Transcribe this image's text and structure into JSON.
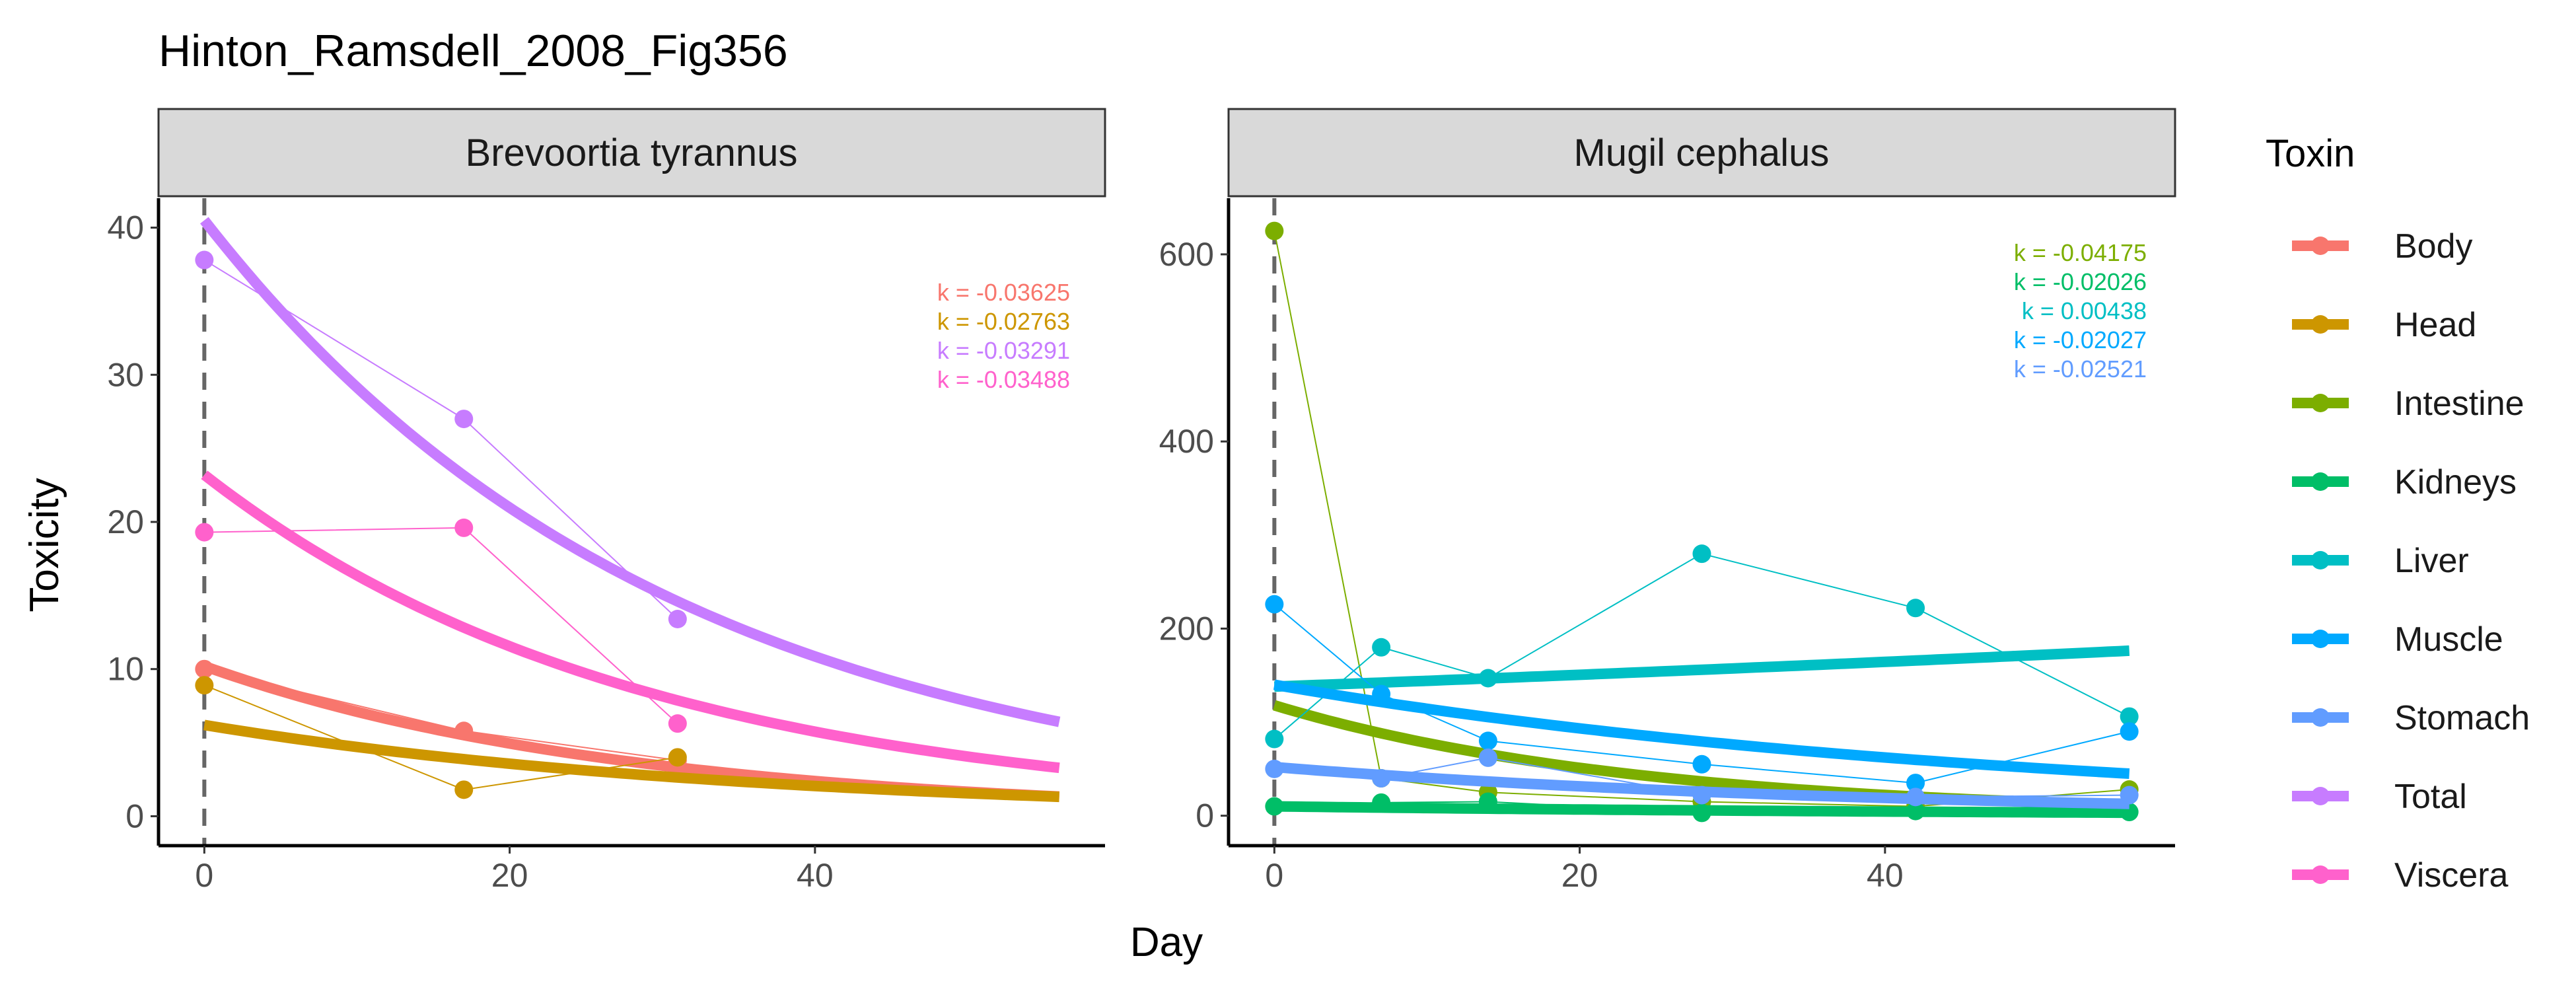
{
  "chart_data": {
    "type": "line",
    "title": "Hinton_Ramsdell_2008_Fig356",
    "xlabel": "Day",
    "ylabel": "Toxicity",
    "legend": {
      "title": "Toxin",
      "placement": "right",
      "items": [
        {
          "name": "Body",
          "color": "#F8766D"
        },
        {
          "name": "Head",
          "color": "#CD9600"
        },
        {
          "name": "Intestine",
          "color": "#7CAE00"
        },
        {
          "name": "Kidneys",
          "color": "#00BE67"
        },
        {
          "name": "Liver",
          "color": "#00BFC4"
        },
        {
          "name": "Muscle",
          "color": "#00A9FF"
        },
        {
          "name": "Stomach",
          "color": "#619CFF"
        },
        {
          "name": "Total",
          "color": "#C77CFF"
        },
        {
          "name": "Viscera",
          "color": "#FF61CC"
        }
      ]
    },
    "panels": [
      {
        "title": "Brevoortia tyrannus",
        "xlim": [
          -3,
          59
        ],
        "ylim": [
          -2,
          42
        ],
        "xticks": [
          0,
          20,
          40
        ],
        "yticks": [
          0,
          10,
          20,
          30,
          40
        ],
        "vline_x": 0,
        "series": [
          {
            "name": "Body",
            "color": "#F8766D",
            "x": [
              0,
              17,
              31
            ],
            "y": [
              10.0,
              5.8,
              3.8
            ],
            "fit": {
              "a": 10.2,
              "k": -0.03625,
              "x_end": 56
            }
          },
          {
            "name": "Head",
            "color": "#CD9600",
            "x": [
              0,
              17,
              31
            ],
            "y": [
              8.9,
              1.8,
              4.0
            ],
            "fit": {
              "a": 6.2,
              "k": -0.02763,
              "x_end": 56
            }
          },
          {
            "name": "Total",
            "color": "#C77CFF",
            "x": [
              0,
              17,
              31
            ],
            "y": [
              37.8,
              27.0,
              13.4
            ],
            "fit": {
              "a": 40.5,
              "k": -0.03291,
              "x_end": 56
            }
          },
          {
            "name": "Viscera",
            "color": "#FF61CC",
            "x": [
              0,
              17,
              31
            ],
            "y": [
              19.3,
              19.6,
              6.3
            ],
            "fit": {
              "a": 23.2,
              "k": -0.03488,
              "x_end": 56
            }
          }
        ],
        "k_labels": [
          {
            "text": "k = -0.03625",
            "color": "#F8766D"
          },
          {
            "text": "k = -0.02763",
            "color": "#CD9600"
          },
          {
            "text": "k = -0.03291",
            "color": "#C77CFF"
          },
          {
            "text": "k = -0.03488",
            "color": "#FF61CC"
          }
        ]
      },
      {
        "title": "Mugil cephalus",
        "xlim": [
          -3,
          59
        ],
        "ylim": [
          -32,
          660
        ],
        "xticks": [
          0,
          20,
          40
        ],
        "yticks": [
          0,
          200,
          400,
          600
        ],
        "vline_x": 0,
        "series": [
          {
            "name": "Intestine",
            "color": "#7CAE00",
            "x": [
              0,
              7,
              14,
              28,
              42,
              56
            ],
            "y": [
              625,
              40,
              25,
              15,
              10,
              28
            ],
            "fit": {
              "a": 118,
              "k": -0.04175,
              "x_end": 56
            }
          },
          {
            "name": "Kidneys",
            "color": "#00BE67",
            "x": [
              0,
              7,
              14,
              28,
              42,
              56
            ],
            "y": [
              10,
              14,
              15,
              3,
              5,
              4
            ],
            "fit": {
              "a": 10,
              "k": -0.02026,
              "x_end": 56
            }
          },
          {
            "name": "Liver",
            "color": "#00BFC4",
            "x": [
              0,
              7,
              14,
              28,
              42,
              56
            ],
            "y": [
              82,
              180,
              147,
              280,
              222,
              106
            ],
            "fit": {
              "a": 138,
              "k": 0.00438,
              "x_end": 56
            }
          },
          {
            "name": "Muscle",
            "color": "#00A9FF",
            "x": [
              0,
              7,
              14,
              28,
              42,
              56
            ],
            "y": [
              226,
              130,
              80,
              55,
              35,
              90
            ],
            "fit": {
              "a": 140,
              "k": -0.02027,
              "x_end": 56
            }
          },
          {
            "name": "Stomach",
            "color": "#619CFF",
            "x": [
              0,
              7,
              14,
              28,
              42,
              56
            ],
            "y": [
              50,
              40,
              62,
              22,
              20,
              22
            ],
            "fit": {
              "a": 52,
              "k": -0.02521,
              "x_end": 56
            }
          }
        ],
        "k_labels": [
          {
            "text": "k = -0.04175",
            "color": "#7CAE00"
          },
          {
            "text": "k = -0.02026",
            "color": "#00BE67"
          },
          {
            "text": "k = 0.00438",
            "color": "#00BFC4"
          },
          {
            "text": "k = -0.02027",
            "color": "#00A9FF"
          },
          {
            "text": "k = -0.02521",
            "color": "#619CFF"
          }
        ]
      }
    ]
  }
}
